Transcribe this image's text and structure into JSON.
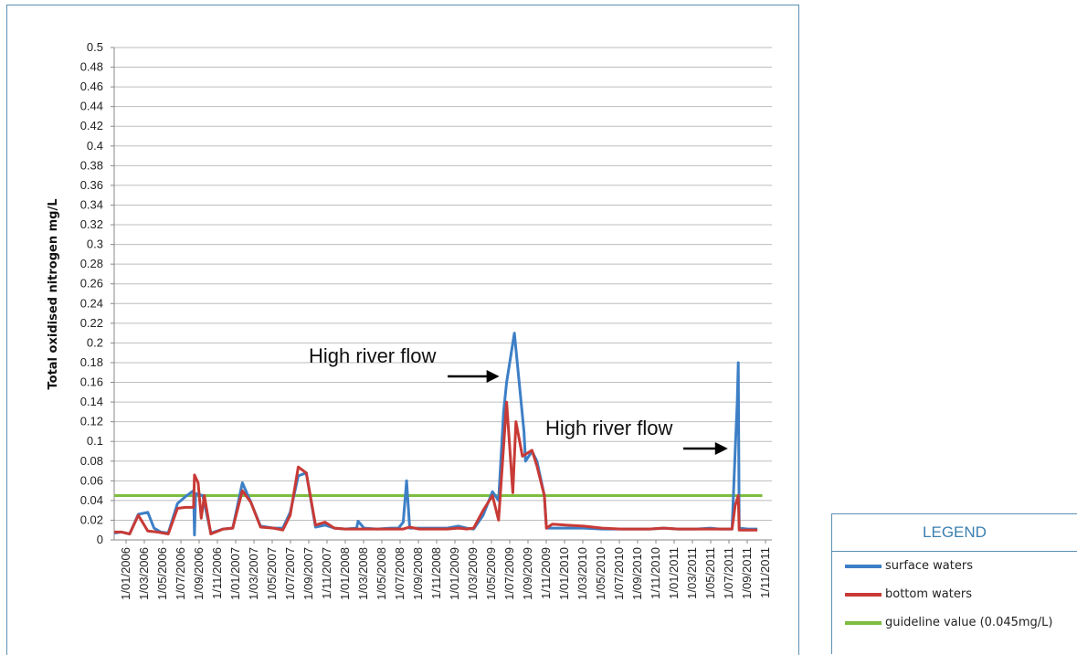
{
  "chart_data": {
    "type": "line",
    "ylabel": "Total oxidised nitrogen mg/L",
    "xlabel": "",
    "ylim": [
      0,
      0.5
    ],
    "y_ticks": [
      "0",
      "0.02",
      "0.04",
      "0.06",
      "0.08",
      "0.1",
      "0.12",
      "0.14",
      "0.16",
      "0.18",
      "0.2",
      "0.22",
      "0.24",
      "0.26",
      "0.28",
      "0.3",
      "0.32",
      "0.34",
      "0.36",
      "0.38",
      "0.4",
      "0.42",
      "0.44",
      "0.46",
      "0.48",
      "0.5"
    ],
    "x_ticks": [
      "1/01/2006",
      "1/03/2006",
      "1/05/2006",
      "1/07/2006",
      "1/09/2006",
      "1/11/2006",
      "1/01/2007",
      "1/03/2007",
      "1/05/2007",
      "1/07/2007",
      "1/09/2007",
      "1/11/2007",
      "1/01/2008",
      "1/03/2008",
      "1/05/2008",
      "1/07/2008",
      "1/09/2008",
      "1/11/2008",
      "1/01/2009",
      "1/03/2009",
      "1/05/2009",
      "1/07/2009",
      "1/09/2009",
      "1/11/2009",
      "1/01/2010",
      "1/03/2010",
      "1/05/2010",
      "1/07/2010",
      "1/09/2010",
      "1/11/2010",
      "1/01/2011",
      "1/03/2011",
      "1/05/2011",
      "1/07/2011",
      "1/09/2011",
      "1/11/2011"
    ],
    "grid": true,
    "legend_placement": "bottom-right, outside plot",
    "series": [
      {
        "name": "surface waters",
        "color": "#3d7fc6",
        "points": [
          [
            "2006-01-01",
            0.007
          ],
          [
            "2006-01-25",
            0.008
          ],
          [
            "2006-02-20",
            0.006
          ],
          [
            "2006-03-20",
            0.026
          ],
          [
            "2006-04-20",
            0.028
          ],
          [
            "2006-05-10",
            0.012
          ],
          [
            "2006-06-01",
            0.008
          ],
          [
            "2006-06-25",
            0.007
          ],
          [
            "2006-07-25",
            0.037
          ],
          [
            "2006-08-20",
            0.044
          ],
          [
            "2006-09-15",
            0.05
          ],
          [
            "2006-09-18",
            0.005
          ],
          [
            "2006-09-22",
            0.047
          ],
          [
            "2006-10-15",
            0.045
          ],
          [
            "2006-11-10",
            0.007
          ],
          [
            "2006-12-20",
            0.011
          ],
          [
            "2007-01-20",
            0.012
          ],
          [
            "2007-02-20",
            0.058
          ],
          [
            "2007-03-20",
            0.038
          ],
          [
            "2007-04-20",
            0.014
          ],
          [
            "2007-06-01",
            0.012
          ],
          [
            "2007-07-01",
            0.012
          ],
          [
            "2007-07-25",
            0.028
          ],
          [
            "2007-08-20",
            0.065
          ],
          [
            "2007-09-15",
            0.068
          ],
          [
            "2007-10-15",
            0.013
          ],
          [
            "2007-11-15",
            0.015
          ],
          [
            "2007-12-15",
            0.012
          ],
          [
            "2008-01-20",
            0.011
          ],
          [
            "2008-02-25",
            0.012
          ],
          [
            "2008-03-01",
            0.019
          ],
          [
            "2008-03-20",
            0.012
          ],
          [
            "2008-05-01",
            0.011
          ],
          [
            "2008-06-15",
            0.012
          ],
          [
            "2008-07-10",
            0.012
          ],
          [
            "2008-07-25",
            0.018
          ],
          [
            "2008-08-05",
            0.06
          ],
          [
            "2008-08-15",
            0.012
          ],
          [
            "2008-09-15",
            0.012
          ],
          [
            "2008-11-01",
            0.012
          ],
          [
            "2008-12-15",
            0.012
          ],
          [
            "2009-01-20",
            0.014
          ],
          [
            "2009-02-15",
            0.012
          ],
          [
            "2009-03-10",
            0.011
          ],
          [
            "2009-04-10",
            0.025
          ],
          [
            "2009-05-10",
            0.049
          ],
          [
            "2009-05-30",
            0.04
          ],
          [
            "2009-06-15",
            0.13
          ],
          [
            "2009-06-25",
            0.16
          ],
          [
            "2009-07-20",
            0.21
          ],
          [
            "2009-08-20",
            0.11
          ],
          [
            "2009-08-25",
            0.08
          ],
          [
            "2009-09-15",
            0.09
          ],
          [
            "2009-10-01",
            0.08
          ],
          [
            "2009-10-25",
            0.045
          ],
          [
            "2009-11-01",
            0.012
          ],
          [
            "2009-12-01",
            0.012
          ],
          [
            "2010-01-01",
            0.012
          ],
          [
            "2010-03-01",
            0.012
          ],
          [
            "2010-05-01",
            0.011
          ],
          [
            "2010-07-01",
            0.011
          ],
          [
            "2010-08-15",
            0.011
          ],
          [
            "2010-10-01",
            0.011
          ],
          [
            "2010-11-15",
            0.012
          ],
          [
            "2011-01-01",
            0.011
          ],
          [
            "2011-03-01",
            0.011
          ],
          [
            "2011-04-15",
            0.012
          ],
          [
            "2011-05-15",
            0.011
          ],
          [
            "2011-06-25",
            0.011
          ],
          [
            "2011-07-05",
            0.09
          ],
          [
            "2011-07-12",
            0.14
          ],
          [
            "2011-07-15",
            0.18
          ],
          [
            "2011-07-18",
            0.012
          ],
          [
            "2011-08-15",
            0.011
          ],
          [
            "2011-09-15",
            0.011
          ]
        ]
      },
      {
        "name": "bottom waters",
        "color": "#c83a36",
        "points": [
          [
            "2006-01-01",
            0.008
          ],
          [
            "2006-01-25",
            0.008
          ],
          [
            "2006-02-20",
            0.006
          ],
          [
            "2006-03-20",
            0.025
          ],
          [
            "2006-04-20",
            0.009
          ],
          [
            "2006-05-20",
            0.008
          ],
          [
            "2006-06-25",
            0.006
          ],
          [
            "2006-07-25",
            0.032
          ],
          [
            "2006-08-20",
            0.033
          ],
          [
            "2006-09-15",
            0.033
          ],
          [
            "2006-09-18",
            0.066
          ],
          [
            "2006-09-30",
            0.058
          ],
          [
            "2006-10-10",
            0.022
          ],
          [
            "2006-10-20",
            0.045
          ],
          [
            "2006-11-10",
            0.006
          ],
          [
            "2006-12-20",
            0.011
          ],
          [
            "2007-01-20",
            0.012
          ],
          [
            "2007-02-20",
            0.05
          ],
          [
            "2007-03-20",
            0.038
          ],
          [
            "2007-04-20",
            0.013
          ],
          [
            "2007-06-01",
            0.012
          ],
          [
            "2007-07-01",
            0.01
          ],
          [
            "2007-07-25",
            0.025
          ],
          [
            "2007-08-20",
            0.074
          ],
          [
            "2007-09-15",
            0.068
          ],
          [
            "2007-10-15",
            0.015
          ],
          [
            "2007-11-15",
            0.018
          ],
          [
            "2007-12-15",
            0.012
          ],
          [
            "2008-01-20",
            0.011
          ],
          [
            "2008-03-20",
            0.011
          ],
          [
            "2008-05-01",
            0.011
          ],
          [
            "2008-06-15",
            0.011
          ],
          [
            "2008-07-25",
            0.011
          ],
          [
            "2008-08-15",
            0.013
          ],
          [
            "2008-09-15",
            0.011
          ],
          [
            "2008-11-01",
            0.011
          ],
          [
            "2008-12-15",
            0.011
          ],
          [
            "2009-01-20",
            0.012
          ],
          [
            "2009-02-15",
            0.011
          ],
          [
            "2009-03-10",
            0.012
          ],
          [
            "2009-04-10",
            0.03
          ],
          [
            "2009-05-10",
            0.045
          ],
          [
            "2009-05-30",
            0.02
          ],
          [
            "2009-06-25",
            0.14
          ],
          [
            "2009-07-15",
            0.048
          ],
          [
            "2009-07-25",
            0.12
          ],
          [
            "2009-08-15",
            0.085
          ],
          [
            "2009-09-15",
            0.091
          ],
          [
            "2009-10-01",
            0.075
          ],
          [
            "2009-10-25",
            0.045
          ],
          [
            "2009-11-01",
            0.012
          ],
          [
            "2009-11-20",
            0.016
          ],
          [
            "2010-01-01",
            0.015
          ],
          [
            "2010-03-01",
            0.014
          ],
          [
            "2010-05-01",
            0.012
          ],
          [
            "2010-07-01",
            0.011
          ],
          [
            "2010-08-15",
            0.011
          ],
          [
            "2010-10-01",
            0.011
          ],
          [
            "2010-11-15",
            0.012
          ],
          [
            "2011-01-01",
            0.011
          ],
          [
            "2011-03-01",
            0.011
          ],
          [
            "2011-04-15",
            0.011
          ],
          [
            "2011-05-15",
            0.011
          ],
          [
            "2011-06-25",
            0.011
          ],
          [
            "2011-07-05",
            0.035
          ],
          [
            "2011-07-15",
            0.045
          ],
          [
            "2011-07-18",
            0.01
          ],
          [
            "2011-08-15",
            0.01
          ],
          [
            "2011-09-15",
            0.01
          ]
        ]
      },
      {
        "name": "guideline value (0.045mg/L)",
        "color": "#7dbd3f",
        "points": [
          [
            "2006-01-01",
            0.045
          ],
          [
            "2011-10-01",
            0.045
          ]
        ]
      }
    ],
    "annotations": [
      {
        "text": "High river flow",
        "arrow_target": [
          "2009-06-25",
          0.16
        ]
      },
      {
        "text": "High river flow",
        "arrow_target": [
          "2011-07-05",
          0.09
        ]
      }
    ]
  },
  "legend": {
    "title": "LEGEND",
    "items": [
      {
        "label": "surface waters",
        "color": "#3d7fc6"
      },
      {
        "label": "bottom waters",
        "color": "#c83a36"
      },
      {
        "label": "guideline value (0.045mg/L)",
        "color": "#7dbd3f"
      }
    ]
  }
}
